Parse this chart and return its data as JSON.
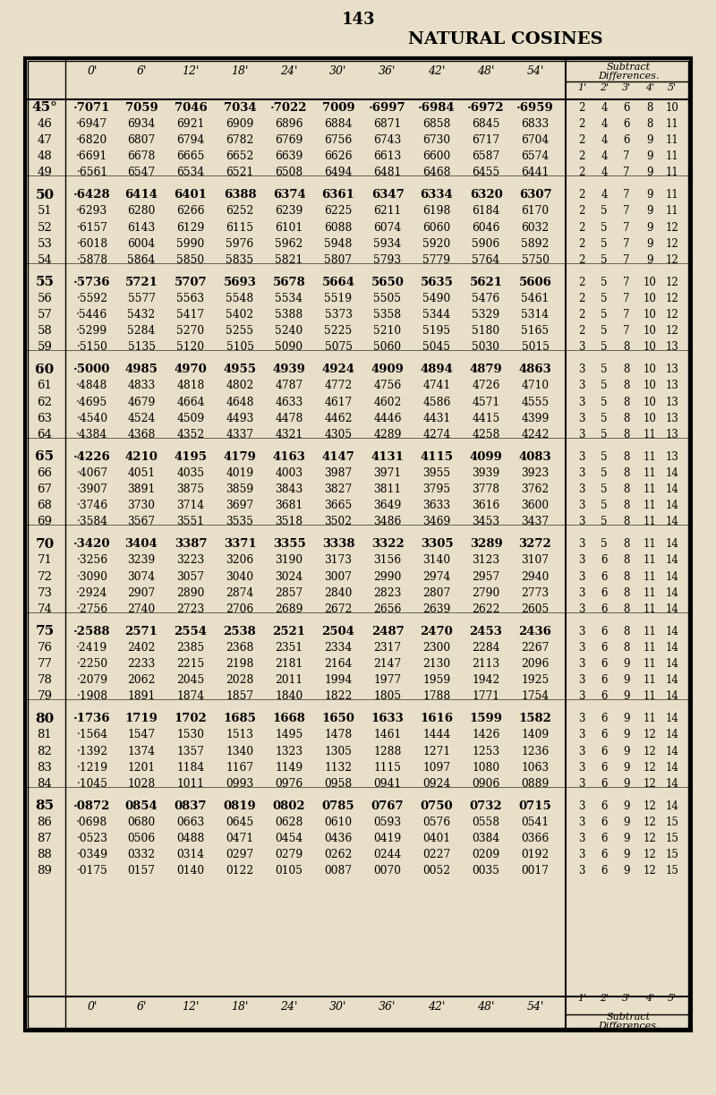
{
  "page_number": "143",
  "title": "NATURAL COSINES",
  "bg_color": "#e8dfc8",
  "col_headers": [
    "0'",
    "6'",
    "12'",
    "18'",
    "24'",
    "30'",
    "36'",
    "42'",
    "48'",
    "54'"
  ],
  "diff_subheader": [
    "1'",
    "2'",
    "3'",
    "4'",
    "5'"
  ],
  "rows": [
    {
      "deg": "45°",
      "vals": [
        "·7071",
        "7059",
        "7046",
        "7034",
        "·7022",
        "7009",
        "·6997",
        "·6984",
        "·6972",
        "·6959"
      ],
      "diffs": [
        "2",
        "4",
        "6",
        "8",
        "10"
      ],
      "bold": true
    },
    {
      "deg": "46",
      "vals": [
        "·6947",
        "6934",
        "6921",
        "6909",
        "6896",
        "6884",
        "6871",
        "6858",
        "6845",
        "6833"
      ],
      "diffs": [
        "2",
        "4",
        "6",
        "8",
        "11"
      ],
      "bold": false
    },
    {
      "deg": "47",
      "vals": [
        "·6820",
        "6807",
        "6794",
        "6782",
        "6769",
        "6756",
        "6743",
        "6730",
        "6717",
        "6704"
      ],
      "diffs": [
        "2",
        "4",
        "6",
        "9",
        "11"
      ],
      "bold": false
    },
    {
      "deg": "48",
      "vals": [
        "·6691",
        "6678",
        "6665",
        "6652",
        "6639",
        "6626",
        "6613",
        "6600",
        "6587",
        "6574"
      ],
      "diffs": [
        "2",
        "4",
        "7",
        "9",
        "11"
      ],
      "bold": false
    },
    {
      "deg": "49",
      "vals": [
        "·6561",
        "6547",
        "6534",
        "6521",
        "6508",
        "6494",
        "6481",
        "6468",
        "6455",
        "6441"
      ],
      "diffs": [
        "2",
        "4",
        "7",
        "9",
        "11"
      ],
      "bold": false
    },
    {
      "deg": "50",
      "vals": [
        "·6428",
        "6414",
        "6401",
        "6388",
        "6374",
        "6361",
        "6347",
        "6334",
        "6320",
        "6307"
      ],
      "diffs": [
        "2",
        "4",
        "7",
        "9",
        "11"
      ],
      "bold": true
    },
    {
      "deg": "51",
      "vals": [
        "·6293",
        "6280",
        "6266",
        "6252",
        "6239",
        "6225",
        "6211",
        "6198",
        "6184",
        "6170"
      ],
      "diffs": [
        "2",
        "5",
        "7",
        "9",
        "11"
      ],
      "bold": false
    },
    {
      "deg": "52",
      "vals": [
        "·6157",
        "6143",
        "6129",
        "6115",
        "6101",
        "6088",
        "6074",
        "6060",
        "6046",
        "6032"
      ],
      "diffs": [
        "2",
        "5",
        "7",
        "9",
        "12"
      ],
      "bold": false
    },
    {
      "deg": "53",
      "vals": [
        "·6018",
        "6004",
        "5990",
        "5976",
        "5962",
        "5948",
        "5934",
        "5920",
        "5906",
        "5892"
      ],
      "diffs": [
        "2",
        "5",
        "7",
        "9",
        "12"
      ],
      "bold": false
    },
    {
      "deg": "54",
      "vals": [
        "·5878",
        "5864",
        "5850",
        "5835",
        "5821",
        "5807",
        "5793",
        "5779",
        "5764",
        "5750"
      ],
      "diffs": [
        "2",
        "5",
        "7",
        "9",
        "12"
      ],
      "bold": false
    },
    {
      "deg": "55",
      "vals": [
        "·5736",
        "5721",
        "5707",
        "5693",
        "5678",
        "5664",
        "5650",
        "5635",
        "5621",
        "5606"
      ],
      "diffs": [
        "2",
        "5",
        "7",
        "10",
        "12"
      ],
      "bold": true
    },
    {
      "deg": "56",
      "vals": [
        "·5592",
        "5577",
        "5563",
        "5548",
        "5534",
        "5519",
        "5505",
        "5490",
        "5476",
        "5461"
      ],
      "diffs": [
        "2",
        "5",
        "7",
        "10",
        "12"
      ],
      "bold": false
    },
    {
      "deg": "57",
      "vals": [
        "·5446",
        "5432",
        "5417",
        "5402",
        "5388",
        "5373",
        "5358",
        "5344",
        "5329",
        "5314"
      ],
      "diffs": [
        "2",
        "5",
        "7",
        "10",
        "12"
      ],
      "bold": false
    },
    {
      "deg": "58",
      "vals": [
        "·5299",
        "5284",
        "5270",
        "5255",
        "5240",
        "5225",
        "5210",
        "5195",
        "5180",
        "5165"
      ],
      "diffs": [
        "2",
        "5",
        "7",
        "10",
        "12"
      ],
      "bold": false
    },
    {
      "deg": "59",
      "vals": [
        "·5150",
        "5135",
        "5120",
        "5105",
        "5090",
        "5075",
        "5060",
        "5045",
        "5030",
        "5015"
      ],
      "diffs": [
        "3",
        "5",
        "8",
        "10",
        "13"
      ],
      "bold": false
    },
    {
      "deg": "60",
      "vals": [
        "·5000",
        "4985",
        "4970",
        "4955",
        "4939",
        "4924",
        "4909",
        "4894",
        "4879",
        "4863"
      ],
      "diffs": [
        "3",
        "5",
        "8",
        "10",
        "13"
      ],
      "bold": true
    },
    {
      "deg": "61",
      "vals": [
        "·4848",
        "4833",
        "4818",
        "4802",
        "4787",
        "4772",
        "4756",
        "4741",
        "4726",
        "4710"
      ],
      "diffs": [
        "3",
        "5",
        "8",
        "10",
        "13"
      ],
      "bold": false
    },
    {
      "deg": "62",
      "vals": [
        "·4695",
        "4679",
        "4664",
        "4648",
        "4633",
        "4617",
        "4602",
        "4586",
        "4571",
        "4555"
      ],
      "diffs": [
        "3",
        "5",
        "8",
        "10",
        "13"
      ],
      "bold": false
    },
    {
      "deg": "63",
      "vals": [
        "·4540",
        "4524",
        "4509",
        "4493",
        "4478",
        "4462",
        "4446",
        "4431",
        "4415",
        "4399"
      ],
      "diffs": [
        "3",
        "5",
        "8",
        "10",
        "13"
      ],
      "bold": false
    },
    {
      "deg": "64",
      "vals": [
        "·4384",
        "4368",
        "4352",
        "4337",
        "4321",
        "4305",
        "4289",
        "4274",
        "4258",
        "4242"
      ],
      "diffs": [
        "3",
        "5",
        "8",
        "11",
        "13"
      ],
      "bold": false
    },
    {
      "deg": "65",
      "vals": [
        "·4226",
        "4210",
        "4195",
        "4179",
        "4163",
        "4147",
        "4131",
        "4115",
        "4099",
        "4083"
      ],
      "diffs": [
        "3",
        "5",
        "8",
        "11",
        "13"
      ],
      "bold": true
    },
    {
      "deg": "66",
      "vals": [
        "·4067",
        "4051",
        "4035",
        "4019",
        "4003",
        "3987",
        "3971",
        "3955",
        "3939",
        "3923"
      ],
      "diffs": [
        "3",
        "5",
        "8",
        "11",
        "14"
      ],
      "bold": false
    },
    {
      "deg": "67",
      "vals": [
        "·3907",
        "3891",
        "3875",
        "3859",
        "3843",
        "3827",
        "3811",
        "3795",
        "3778",
        "3762"
      ],
      "diffs": [
        "3",
        "5",
        "8",
        "11",
        "14"
      ],
      "bold": false
    },
    {
      "deg": "68",
      "vals": [
        "·3746",
        "3730",
        "3714",
        "3697",
        "3681",
        "3665",
        "3649",
        "3633",
        "3616",
        "3600"
      ],
      "diffs": [
        "3",
        "5",
        "8",
        "11",
        "14"
      ],
      "bold": false
    },
    {
      "deg": "69",
      "vals": [
        "·3584",
        "3567",
        "3551",
        "3535",
        "3518",
        "3502",
        "3486",
        "3469",
        "3453",
        "3437"
      ],
      "diffs": [
        "3",
        "5",
        "8",
        "11",
        "14"
      ],
      "bold": false
    },
    {
      "deg": "70",
      "vals": [
        "·3420",
        "3404",
        "3387",
        "3371",
        "3355",
        "3338",
        "3322",
        "3305",
        "3289",
        "3272"
      ],
      "diffs": [
        "3",
        "5",
        "8",
        "11",
        "14"
      ],
      "bold": true
    },
    {
      "deg": "71",
      "vals": [
        "·3256",
        "3239",
        "3223",
        "3206",
        "3190",
        "3173",
        "3156",
        "3140",
        "3123",
        "3107"
      ],
      "diffs": [
        "3",
        "6",
        "8",
        "11",
        "14"
      ],
      "bold": false
    },
    {
      "deg": "72",
      "vals": [
        "·3090",
        "3074",
        "3057",
        "3040",
        "3024",
        "3007",
        "2990",
        "2974",
        "2957",
        "2940"
      ],
      "diffs": [
        "3",
        "6",
        "8",
        "11",
        "14"
      ],
      "bold": false
    },
    {
      "deg": "73",
      "vals": [
        "·2924",
        "2907",
        "2890",
        "2874",
        "2857",
        "2840",
        "2823",
        "2807",
        "2790",
        "2773"
      ],
      "diffs": [
        "3",
        "6",
        "8",
        "11",
        "14"
      ],
      "bold": false
    },
    {
      "deg": "74",
      "vals": [
        "·2756",
        "2740",
        "2723",
        "2706",
        "2689",
        "2672",
        "2656",
        "2639",
        "2622",
        "2605"
      ],
      "diffs": [
        "3",
        "6",
        "8",
        "11",
        "14"
      ],
      "bold": false
    },
    {
      "deg": "75",
      "vals": [
        "·2588",
        "2571",
        "2554",
        "2538",
        "2521",
        "2504",
        "2487",
        "2470",
        "2453",
        "2436"
      ],
      "diffs": [
        "3",
        "6",
        "8",
        "11",
        "14"
      ],
      "bold": true
    },
    {
      "deg": "76",
      "vals": [
        "·2419",
        "2402",
        "2385",
        "2368",
        "2351",
        "2334",
        "2317",
        "2300",
        "2284",
        "2267"
      ],
      "diffs": [
        "3",
        "6",
        "8",
        "11",
        "14"
      ],
      "bold": false
    },
    {
      "deg": "77",
      "vals": [
        "·2250",
        "2233",
        "2215",
        "2198",
        "2181",
        "2164",
        "2147",
        "2130",
        "2113",
        "2096"
      ],
      "diffs": [
        "3",
        "6",
        "9",
        "11",
        "14"
      ],
      "bold": false
    },
    {
      "deg": "78",
      "vals": [
        "·2079",
        "2062",
        "2045",
        "2028",
        "2011",
        "1994",
        "1977",
        "1959",
        "1942",
        "1925"
      ],
      "diffs": [
        "3",
        "6",
        "9",
        "11",
        "14"
      ],
      "bold": false
    },
    {
      "deg": "79",
      "vals": [
        "·1908",
        "1891",
        "1874",
        "1857",
        "1840",
        "1822",
        "1805",
        "1788",
        "1771",
        "1754"
      ],
      "diffs": [
        "3",
        "6",
        "9",
        "11",
        "14"
      ],
      "bold": false
    },
    {
      "deg": "80",
      "vals": [
        "·1736",
        "1719",
        "1702",
        "1685",
        "1668",
        "1650",
        "1633",
        "1616",
        "1599",
        "1582"
      ],
      "diffs": [
        "3",
        "6",
        "9",
        "11",
        "14"
      ],
      "bold": true
    },
    {
      "deg": "81",
      "vals": [
        "·1564",
        "1547",
        "1530",
        "1513",
        "1495",
        "1478",
        "1461",
        "1444",
        "1426",
        "1409"
      ],
      "diffs": [
        "3",
        "6",
        "9",
        "12",
        "14"
      ],
      "bold": false
    },
    {
      "deg": "82",
      "vals": [
        "·1392",
        "1374",
        "1357",
        "1340",
        "1323",
        "1305",
        "1288",
        "1271",
        "1253",
        "1236"
      ],
      "diffs": [
        "3",
        "6",
        "9",
        "12",
        "14"
      ],
      "bold": false
    },
    {
      "deg": "83",
      "vals": [
        "·1219",
        "1201",
        "1184",
        "1167",
        "1149",
        "1132",
        "1115",
        "1097",
        "1080",
        "1063"
      ],
      "diffs": [
        "3",
        "6",
        "9",
        "12",
        "14"
      ],
      "bold": false
    },
    {
      "deg": "84",
      "vals": [
        "·1045",
        "1028",
        "1011",
        "0993",
        "0976",
        "0958",
        "0941",
        "0924",
        "0906",
        "0889"
      ],
      "diffs": [
        "3",
        "6",
        "9",
        "12",
        "14"
      ],
      "bold": false
    },
    {
      "deg": "85",
      "vals": [
        "·0872",
        "0854",
        "0837",
        "0819",
        "0802",
        "0785",
        "0767",
        "0750",
        "0732",
        "0715"
      ],
      "diffs": [
        "3",
        "6",
        "9",
        "12",
        "14"
      ],
      "bold": true
    },
    {
      "deg": "86",
      "vals": [
        "·0698",
        "0680",
        "0663",
        "0645",
        "0628",
        "0610",
        "0593",
        "0576",
        "0558",
        "0541"
      ],
      "diffs": [
        "3",
        "6",
        "9",
        "12",
        "15"
      ],
      "bold": false
    },
    {
      "deg": "87",
      "vals": [
        "·0523",
        "0506",
        "0488",
        "0471",
        "0454",
        "0436",
        "0419",
        "0401",
        "0384",
        "0366"
      ],
      "diffs": [
        "3",
        "6",
        "9",
        "12",
        "15"
      ],
      "bold": false
    },
    {
      "deg": "88",
      "vals": [
        "·0349",
        "0332",
        "0314",
        "0297",
        "0279",
        "0262",
        "0244",
        "0227",
        "0209",
        "0192"
      ],
      "diffs": [
        "3",
        "6",
        "9",
        "12",
        "15"
      ],
      "bold": false
    },
    {
      "deg": "89",
      "vals": [
        "·0175",
        "0157",
        "0140",
        "0122",
        "0105",
        "0087",
        "0070",
        "0052",
        "0035",
        "0017"
      ],
      "diffs": [
        "3",
        "6",
        "9",
        "12",
        "15"
      ],
      "bold": false
    }
  ]
}
